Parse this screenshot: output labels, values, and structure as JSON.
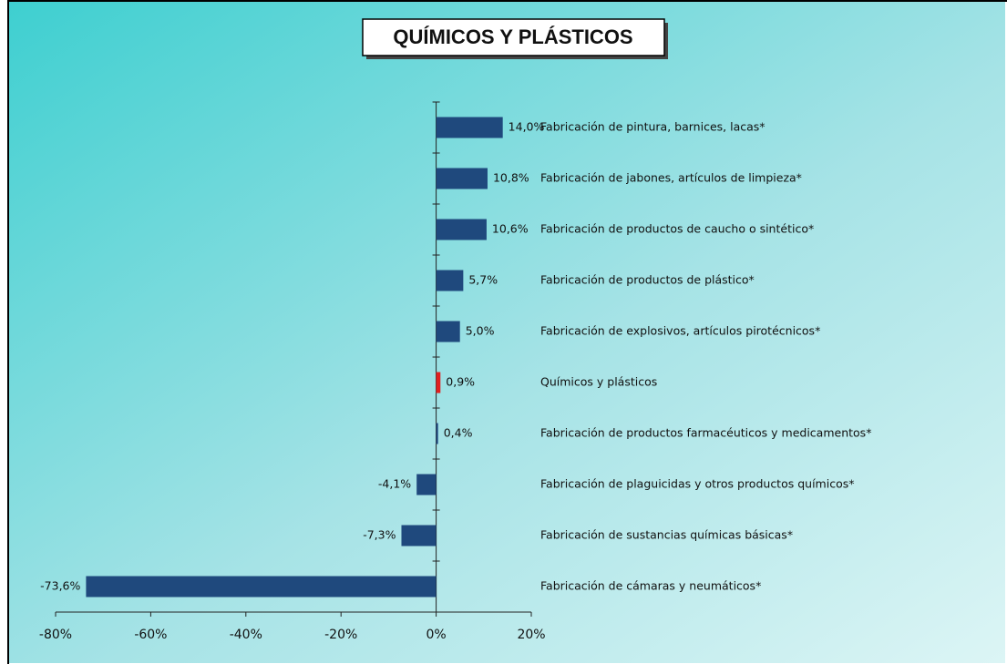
{
  "chart_data": {
    "type": "hbar",
    "title": "QUÍMICOS Y PLÁSTICOS",
    "categories": [
      "Fabricación de pintura, barnices, lacas*",
      "Fabricación de jabones, artículos de limpieza*",
      "Fabricación de productos de caucho o sintético*",
      "Fabricación de productos de plástico*",
      "Fabricación de explosivos, artículos pirotécnicos*",
      "Químicos y plásticos",
      "Fabricación de productos farmacéuticos y medicamentos*",
      "Fabricación de plaguicidas y otros productos químicos*",
      "Fabricación de sustancias químicas básicas*",
      "Fabricación de cámaras y neumáticos*"
    ],
    "values": [
      14.0,
      10.8,
      10.6,
      5.7,
      5.0,
      0.9,
      0.4,
      -4.1,
      -7.3,
      -73.6
    ],
    "value_labels": [
      "14,0%",
      "10,8%",
      "10,6%",
      "5,7%",
      "5,0%",
      "0,9%",
      "0,4%",
      "-4,1%",
      "-7,3%",
      "-73,6%"
    ],
    "colors": [
      "#1f497d",
      "#1f497d",
      "#1f497d",
      "#1f497d",
      "#1f497d",
      "#e02020",
      "#1f497d",
      "#1f497d",
      "#1f497d",
      "#1f497d"
    ],
    "xlim": [
      -80,
      20
    ],
    "xticks": [
      {
        "value": -80,
        "label": "-80%"
      },
      {
        "value": -60,
        "label": "-60%"
      },
      {
        "value": -40,
        "label": "-40%"
      },
      {
        "value": -20,
        "label": "-20%"
      },
      {
        "value": 0,
        "label": "0%"
      },
      {
        "value": 20,
        "label": "20%"
      }
    ]
  }
}
